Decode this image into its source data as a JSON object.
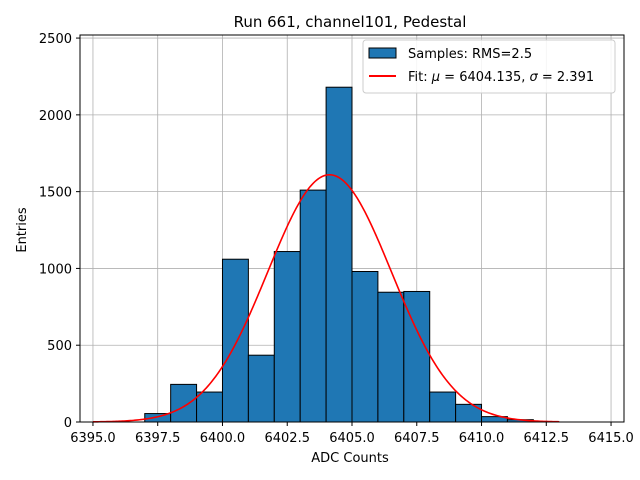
{
  "chart_data": {
    "type": "bar",
    "title": "Run 661, channel101, Pedestal",
    "xlabel": "ADC Counts",
    "ylabel": "Entries",
    "xlim": [
      6394.5,
      6415.5
    ],
    "ylim": [
      0,
      2520
    ],
    "grid": true,
    "xticks": [
      6395.0,
      6397.5,
      6400.0,
      6402.5,
      6405.0,
      6407.5,
      6410.0,
      6412.5,
      6415.0
    ],
    "xtick_labels": [
      "6395.0",
      "6397.5",
      "6400.0",
      "6402.5",
      "6405.0",
      "6407.5",
      "6410.0",
      "6412.5",
      "6415.0"
    ],
    "yticks": [
      0,
      500,
      1000,
      1500,
      2000,
      2500
    ],
    "ytick_labels": [
      "0",
      "500",
      "1000",
      "1500",
      "2000",
      "2500"
    ],
    "bin_width": 1,
    "histogram": {
      "name": "Samples: RMS=2.5",
      "color": "#1f77b4",
      "edge_color": "#000000",
      "bin_left_edges": [
        6397,
        6398,
        6399,
        6400,
        6401,
        6402,
        6403,
        6404,
        6405,
        6406,
        6407,
        6408,
        6409,
        6410,
        6411
      ],
      "values": [
        55,
        245,
        195,
        1060,
        435,
        1110,
        1510,
        2180,
        980,
        845,
        850,
        195,
        115,
        35,
        15
      ]
    },
    "fit": {
      "name": "Fit: μ = 6404.135, σ = 2.391",
      "color": "#ff0000",
      "mu": 6404.135,
      "sigma": 2.391,
      "amplitude": 1610,
      "x_range": [
        6395,
        6413
      ]
    },
    "legend": {
      "position": "top-right",
      "entries": [
        {
          "label": "Samples: RMS=2.5",
          "kind": "patch",
          "color": "#1f77b4"
        },
        {
          "label_prefix": "Fit: ",
          "mu_symbol": "μ",
          "mu_text": " = 6404.135, ",
          "sigma_symbol": "σ",
          "sigma_text": " = 2.391",
          "kind": "line",
          "color": "#ff0000"
        }
      ]
    }
  }
}
